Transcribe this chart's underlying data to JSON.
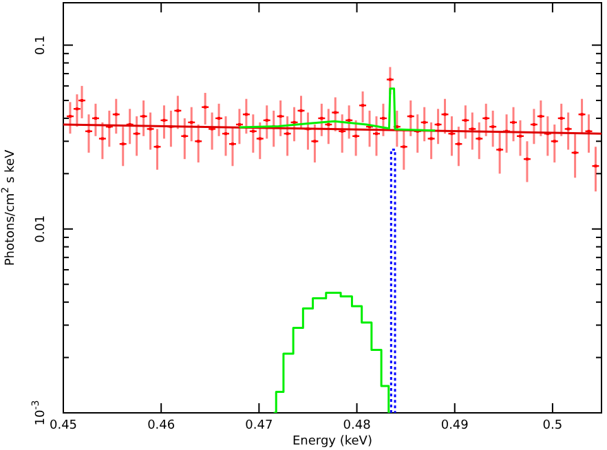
{
  "chart_data": {
    "type": "scatter",
    "xlabel": "Energy (keV)",
    "ylabel": "Photons/cm$^{2}$ s keV",
    "log": "y",
    "grid": false,
    "xlim": [
      0.45,
      0.505
    ],
    "xticks": [
      0.45,
      0.46,
      0.47,
      0.48,
      0.49,
      0.5
    ],
    "ylim": [
      0.001,
      0.17
    ],
    "yticks": [
      {
        "value": 0.001,
        "label": "10$^{-3}$"
      },
      {
        "value": 0.002,
        "label": null
      },
      {
        "value": 0.003,
        "label": null
      },
      {
        "value": 0.004,
        "label": null
      },
      {
        "value": 0.005,
        "label": null
      },
      {
        "value": 0.006,
        "label": null
      },
      {
        "value": 0.007,
        "label": null
      },
      {
        "value": 0.008,
        "label": null
      },
      {
        "value": 0.009,
        "label": null
      },
      0.01,
      {
        "value": 0.02,
        "label": null
      },
      {
        "value": 0.03,
        "label": null
      },
      {
        "value": 0.04,
        "label": null
      },
      {
        "value": 0.05,
        "label": null
      },
      {
        "value": 0.06,
        "label": null
      },
      {
        "value": 0.07,
        "label": null
      },
      {
        "value": 0.08,
        "label": null
      },
      {
        "value": 0.09,
        "label": null
      },
      0.1
    ],
    "series": [
      {
        "color": "#ff0000",
        "marker": "square",
        "x": [
          0.4507,
          0.4514,
          0.4519,
          0.4526,
          0.4533,
          0.454,
          0.4547,
          0.4554,
          0.4561,
          0.4568,
          0.4575,
          0.4582,
          0.4589,
          0.4596,
          0.4603,
          0.461,
          0.4617,
          0.4624,
          0.4631,
          0.4638,
          0.4645,
          0.4652,
          0.4659,
          0.4666,
          0.4673,
          0.468,
          0.4687,
          0.4694,
          0.4701,
          0.4708,
          0.4715,
          0.4722,
          0.4729,
          0.4736,
          0.4743,
          0.475,
          0.4757,
          0.4764,
          0.4771,
          0.4778,
          0.4785,
          0.4792,
          0.4799,
          0.4806,
          0.4813,
          0.482,
          0.4827,
          0.4834,
          0.4841,
          0.4848,
          0.4855,
          0.4862,
          0.4869,
          0.4876,
          0.4883,
          0.489,
          0.4897,
          0.4904,
          0.4911,
          0.4918,
          0.4925,
          0.4932,
          0.4939,
          0.4946,
          0.4953,
          0.496,
          0.4967,
          0.4974,
          0.4981,
          0.4988,
          0.4995,
          0.5002,
          0.5009,
          0.5016,
          0.5023,
          0.503,
          0.5037,
          0.5044
        ],
        "values": [
          0.041,
          0.045,
          0.05,
          0.034,
          0.04,
          0.031,
          0.036,
          0.042,
          0.029,
          0.037,
          0.033,
          0.041,
          0.035,
          0.028,
          0.039,
          0.036,
          0.044,
          0.032,
          0.038,
          0.03,
          0.046,
          0.035,
          0.04,
          0.033,
          0.029,
          0.037,
          0.042,
          0.034,
          0.031,
          0.039,
          0.036,
          0.041,
          0.033,
          0.038,
          0.044,
          0.035,
          0.03,
          0.04,
          0.037,
          0.043,
          0.034,
          0.039,
          0.032,
          0.047,
          0.036,
          0.033,
          0.04,
          0.065,
          0.036,
          0.028,
          0.041,
          0.034,
          0.038,
          0.031,
          0.037,
          0.042,
          0.033,
          0.029,
          0.039,
          0.035,
          0.031,
          0.04,
          0.036,
          0.027,
          0.034,
          0.038,
          0.032,
          0.024,
          0.037,
          0.041,
          0.033,
          0.03,
          0.04,
          0.035,
          0.026,
          0.042,
          0.034,
          0.022
        ],
        "errors": [
          0.008,
          0.009,
          0.01,
          0.008,
          0.008,
          0.007,
          0.008,
          0.009,
          0.007,
          0.008,
          0.008,
          0.009,
          0.008,
          0.007,
          0.008,
          0.008,
          0.009,
          0.008,
          0.008,
          0.007,
          0.009,
          0.008,
          0.008,
          0.008,
          0.007,
          0.008,
          0.009,
          0.008,
          0.007,
          0.008,
          0.008,
          0.009,
          0.008,
          0.008,
          0.009,
          0.008,
          0.007,
          0.008,
          0.008,
          0.009,
          0.008,
          0.008,
          0.007,
          0.009,
          0.008,
          0.008,
          0.008,
          0.011,
          0.008,
          0.007,
          0.009,
          0.008,
          0.008,
          0.007,
          0.008,
          0.009,
          0.008,
          0.007,
          0.008,
          0.008,
          0.007,
          0.008,
          0.008,
          0.007,
          0.008,
          0.008,
          0.007,
          0.006,
          0.008,
          0.009,
          0.008,
          0.007,
          0.008,
          0.008,
          0.007,
          0.009,
          0.008,
          0.006
        ],
        "xerrors": [
          0.00035,
          0.00035,
          0.00035,
          0.00035,
          0.00035,
          0.00035,
          0.00035,
          0.00035,
          0.00035,
          0.00035,
          0.00035,
          0.00035,
          0.00035,
          0.00035,
          0.00035,
          0.00035,
          0.00035,
          0.00035,
          0.00035,
          0.00035,
          0.00035,
          0.00035,
          0.00035,
          0.00035,
          0.00035,
          0.00035,
          0.00035,
          0.00035,
          0.00035,
          0.00035,
          0.00035,
          0.00035,
          0.00035,
          0.00035,
          0.00035,
          0.00035,
          0.00035,
          0.00035,
          0.00035,
          0.00035,
          0.00035,
          0.00035,
          0.00035,
          0.00035,
          0.00035,
          0.00035,
          0.00035,
          0.00035,
          0.00035,
          0.00035,
          0.00035,
          0.00035,
          0.00035,
          0.00035,
          0.00035,
          0.00035,
          0.00035,
          0.00035,
          0.00035,
          0.00035,
          0.00035,
          0.00035,
          0.00035,
          0.00035,
          0.00035,
          0.00035,
          0.00035,
          0.00035,
          0.00035,
          0.00035,
          0.00035,
          0.00035,
          0.00035,
          0.00035,
          0.00035,
          0.00035,
          0.00035,
          0.00035
        ]
      },
      {
        "type": "line",
        "color": "#dd0000",
        "x": [
          0.45,
          0.505
        ],
        "values": [
          0.037,
          0.033
        ]
      },
      {
        "type": "line",
        "color": "#00ee00",
        "x": [
          0.468,
          0.472,
          0.475,
          0.4777,
          0.481,
          0.4833,
          0.4834,
          0.4838,
          0.4839,
          0.488
        ],
        "values": [
          0.0357,
          0.0362,
          0.0375,
          0.0385,
          0.037,
          0.0352,
          0.058,
          0.058,
          0.0348,
          0.0343
        ]
      },
      {
        "type": "step",
        "color": "#00ee00",
        "x": [
          0.4715,
          0.472,
          0.473,
          0.474,
          0.475,
          0.476,
          0.4777,
          0.479,
          0.48,
          0.481,
          0.482,
          0.483,
          0.4835
        ],
        "values": [
          0.001,
          0.0013,
          0.0021,
          0.0029,
          0.0037,
          0.0042,
          0.0045,
          0.0043,
          0.0038,
          0.0031,
          0.0022,
          0.0014,
          0.001
        ]
      },
      {
        "type": "line",
        "color": "#0000ff",
        "line_style": "dotted",
        "x": [
          0.4835,
          0.4835,
          0.4839,
          0.4839
        ],
        "values": [
          0.001,
          0.027,
          0.027,
          0.001
        ]
      }
    ]
  }
}
